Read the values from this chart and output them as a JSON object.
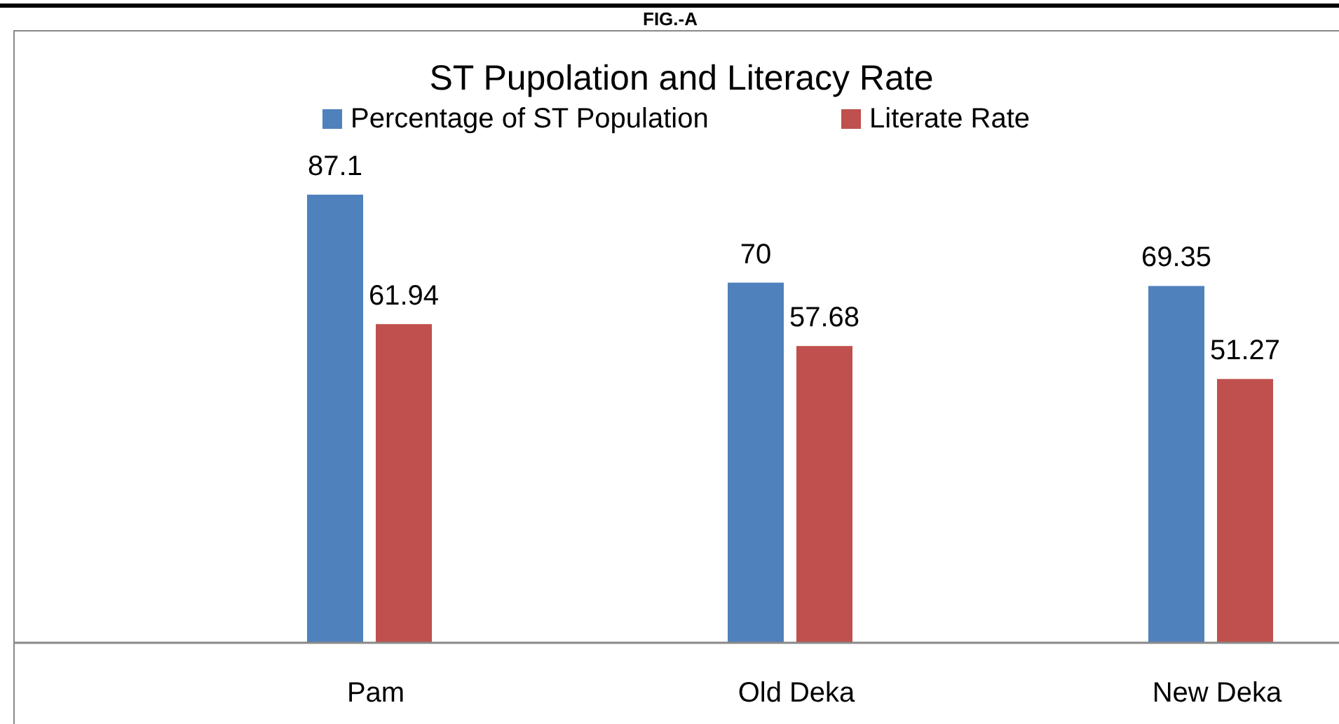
{
  "chart_data": {
    "type": "bar",
    "title": "ST Pupolation and Literacy Rate",
    "subtitle": "FIG.-A",
    "categories": [
      "Pam",
      "Old Deka",
      "New Deka"
    ],
    "series": [
      {
        "name": "Percentage of ST Population",
        "color": "#4f81bd",
        "values": [
          87.1,
          70,
          69.35
        ]
      },
      {
        "name": "Literate Rate",
        "color": "#c0504d",
        "values": [
          61.94,
          57.68,
          51.27
        ]
      }
    ],
    "tick_labels": "x",
    "data_labels": true,
    "legend": "top"
  }
}
